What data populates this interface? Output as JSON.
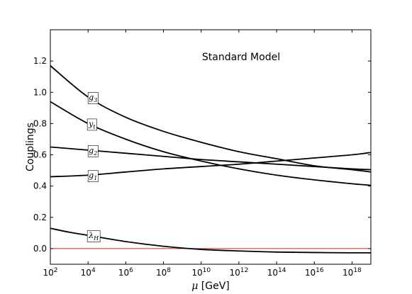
{
  "chart_data": {
    "type": "line",
    "title": "Standard Model",
    "xlabel": "μ [GeV]",
    "ylabel": "Couplings",
    "x_scale": "log",
    "xlim": [
      100,
      1e+19
    ],
    "ylim": [
      -0.1,
      1.4
    ],
    "grid": false,
    "x_ticks": [
      {
        "value": 100,
        "base": "10",
        "exp": "2"
      },
      {
        "value": 10000.0,
        "base": "10",
        "exp": "4"
      },
      {
        "value": 1000000.0,
        "base": "10",
        "exp": "6"
      },
      {
        "value": 100000000.0,
        "base": "10",
        "exp": "8"
      },
      {
        "value": 10000000000.0,
        "base": "10",
        "exp": "10"
      },
      {
        "value": 1000000000000.0,
        "base": "10",
        "exp": "12"
      },
      {
        "value": 100000000000000.0,
        "base": "10",
        "exp": "14"
      },
      {
        "value": 1e+16,
        "base": "10",
        "exp": "16"
      },
      {
        "value": 1e+18,
        "base": "10",
        "exp": "18"
      }
    ],
    "y_ticks": [
      {
        "value": 0.0,
        "label": "0.0"
      },
      {
        "value": 0.2,
        "label": "0.2"
      },
      {
        "value": 0.4,
        "label": "0.4"
      },
      {
        "value": 0.6,
        "label": "0.6"
      },
      {
        "value": 0.8,
        "label": "0.8"
      },
      {
        "value": 1.0,
        "label": "1.0"
      },
      {
        "value": 1.2,
        "label": "1.2"
      }
    ],
    "reference_line": {
      "y": 0.0,
      "color": "#b03030"
    },
    "series": [
      {
        "name": "g3",
        "label_base": "g",
        "label_sub": "3",
        "label_x": 10000.0,
        "color": "#000000",
        "x": [
          100,
          10000.0,
          1000000.0,
          100000000.0,
          10000000000.0,
          1000000000000.0,
          100000000000000.0,
          1e+16,
          1e+18,
          1e+19
        ],
        "y": [
          1.17,
          0.97,
          0.84,
          0.75,
          0.68,
          0.62,
          0.575,
          0.53,
          0.505,
          0.49
        ]
      },
      {
        "name": "yt",
        "label_base": "y",
        "label_sub": "t",
        "label_x": 10000.0,
        "color": "#000000",
        "x": [
          100,
          10000.0,
          1000000.0,
          100000000.0,
          10000000000.0,
          1000000000000.0,
          100000000000000.0,
          1e+16,
          1e+18,
          1e+19
        ],
        "y": [
          0.94,
          0.8,
          0.7,
          0.62,
          0.56,
          0.51,
          0.47,
          0.44,
          0.415,
          0.405
        ]
      },
      {
        "name": "g2",
        "label_base": "g",
        "label_sub": "2",
        "label_x": 10000.0,
        "color": "#000000",
        "x": [
          100,
          10000.0,
          1000000.0,
          100000000.0,
          10000000000.0,
          1000000000000.0,
          100000000000000.0,
          1e+16,
          1e+18,
          1e+19
        ],
        "y": [
          0.65,
          0.63,
          0.61,
          0.59,
          0.57,
          0.555,
          0.54,
          0.525,
          0.51,
          0.505
        ]
      },
      {
        "name": "g1",
        "label_base": "g",
        "label_sub": "1",
        "label_x": 10000.0,
        "color": "#000000",
        "x": [
          100,
          10000.0,
          1000000.0,
          100000000.0,
          10000000000.0,
          1000000000000.0,
          100000000000000.0,
          1e+16,
          1e+18,
          1e+19
        ],
        "y": [
          0.46,
          0.47,
          0.49,
          0.51,
          0.525,
          0.54,
          0.56,
          0.58,
          0.6,
          0.615
        ]
      },
      {
        "name": "λH",
        "label_base": "λ",
        "label_sub": "H",
        "label_x": 10000.0,
        "color": "#000000",
        "x": [
          100,
          1000.0,
          10000.0,
          1000000.0,
          100000000.0,
          10000000000.0,
          1000000000000.0,
          100000000000000.0,
          1e+16,
          1e+18,
          1e+19
        ],
        "y": [
          0.13,
          0.105,
          0.085,
          0.045,
          0.015,
          -0.005,
          -0.015,
          -0.022,
          -0.025,
          -0.027,
          -0.027
        ]
      }
    ]
  }
}
